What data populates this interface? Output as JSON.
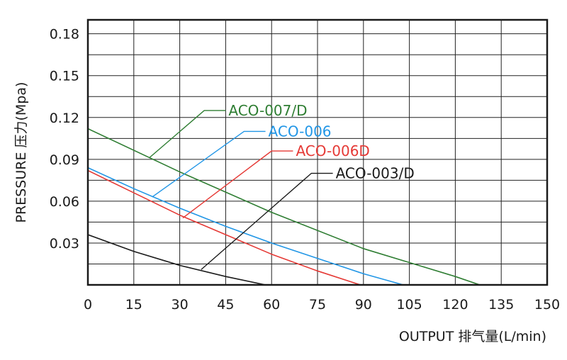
{
  "chart_data": {
    "type": "line",
    "xlabel": "OUTPUT 排气量(L/min)",
    "ylabel": "PRESSURE 压力(Mpa)",
    "xlim": [
      0,
      150
    ],
    "ylim": [
      0,
      0.19
    ],
    "x_ticks": [
      "0",
      "15",
      "30",
      "45",
      "60",
      "75",
      "90",
      "105",
      "120",
      "135",
      "150"
    ],
    "x_tick_values": [
      0,
      15,
      30,
      45,
      60,
      75,
      90,
      105,
      120,
      135,
      150
    ],
    "y_ticks": [
      "0.03",
      "0.06",
      "0.09",
      "0.12",
      "0.15",
      "0.18"
    ],
    "y_tick_values": [
      0.03,
      0.06,
      0.09,
      0.12,
      0.15,
      0.18
    ],
    "grid": true,
    "series": [
      {
        "name": "ACO-007/D",
        "color": "#2e7d32",
        "x": [
          0,
          30,
          60,
          90,
          105,
          120,
          128
        ],
        "y": [
          0.112,
          0.081,
          0.052,
          0.026,
          0.016,
          0.006,
          0.0
        ],
        "label_anchor": [
          20,
          0.091
        ],
        "label_elbow": [
          38,
          0.125
        ],
        "label_end": [
          45,
          0.125
        ]
      },
      {
        "name": "ACO-006",
        "color": "#2196e6",
        "x": [
          0,
          15,
          30,
          45,
          60,
          75,
          90,
          103
        ],
        "y": [
          0.084,
          0.069,
          0.055,
          0.042,
          0.03,
          0.019,
          0.008,
          0.0
        ],
        "label_anchor": [
          21,
          0.063
        ],
        "label_elbow": [
          51,
          0.11
        ],
        "label_end": [
          58,
          0.11
        ]
      },
      {
        "name": "ACO-006D",
        "color": "#e53935",
        "x": [
          0,
          15,
          30,
          45,
          60,
          75,
          89
        ],
        "y": [
          0.082,
          0.066,
          0.05,
          0.036,
          0.022,
          0.01,
          0.0
        ],
        "label_anchor": [
          31,
          0.048
        ],
        "label_elbow": [
          60,
          0.096
        ],
        "label_end": [
          67,
          0.096
        ]
      },
      {
        "name": "ACO-003/D",
        "color": "#1a1a1a",
        "x": [
          0,
          15,
          30,
          45,
          58
        ],
        "y": [
          0.036,
          0.024,
          0.014,
          0.006,
          0.0
        ],
        "label_anchor": [
          37,
          0.011
        ],
        "label_elbow": [
          73,
          0.08
        ],
        "label_end": [
          80,
          0.08
        ]
      }
    ]
  }
}
